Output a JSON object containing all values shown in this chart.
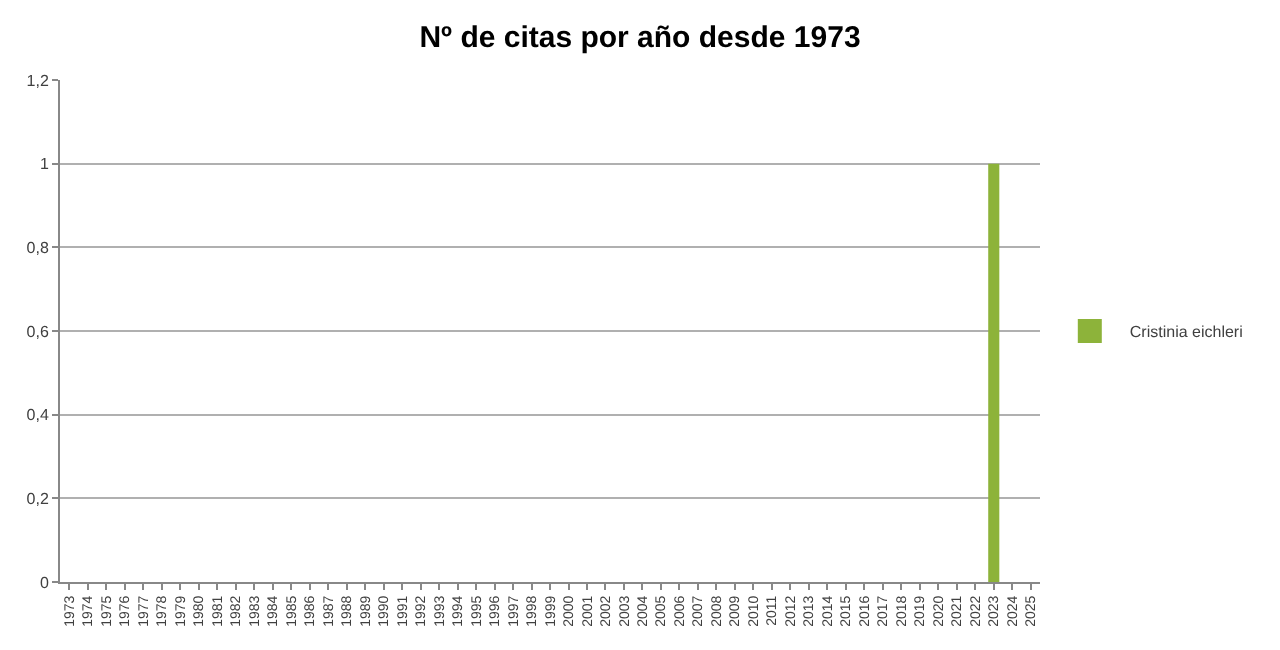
{
  "chart_data": {
    "type": "bar",
    "title": "Nº de citas por año desde 1973",
    "categories": [
      "1973",
      "1974",
      "1975",
      "1976",
      "1977",
      "1978",
      "1979",
      "1980",
      "1981",
      "1982",
      "1983",
      "1984",
      "1985",
      "1986",
      "1987",
      "1988",
      "1989",
      "1990",
      "1991",
      "1992",
      "1993",
      "1994",
      "1995",
      "1996",
      "1997",
      "1998",
      "1999",
      "2000",
      "2001",
      "2002",
      "2003",
      "2004",
      "2005",
      "2006",
      "2007",
      "2008",
      "2009",
      "2010",
      "2011",
      "2012",
      "2013",
      "2014",
      "2015",
      "2016",
      "2017",
      "2018",
      "2019",
      "2020",
      "2021",
      "2022",
      "2023",
      "2024",
      "2025"
    ],
    "series": [
      {
        "name": "Cristinia eichleri",
        "color": "#8db33a",
        "values": [
          0,
          0,
          0,
          0,
          0,
          0,
          0,
          0,
          0,
          0,
          0,
          0,
          0,
          0,
          0,
          0,
          0,
          0,
          0,
          0,
          0,
          0,
          0,
          0,
          0,
          0,
          0,
          0,
          0,
          0,
          0,
          0,
          0,
          0,
          0,
          0,
          0,
          0,
          0,
          0,
          0,
          0,
          0,
          0,
          0,
          0,
          0,
          0,
          0,
          0,
          1,
          0,
          0
        ]
      }
    ],
    "ylim": [
      0,
      1.2
    ],
    "yticks": [
      0,
      {
        "value": 0.2,
        "label": "0,2"
      },
      {
        "value": 0.4,
        "label": "0,4"
      },
      {
        "value": 0.6,
        "label": "0,6"
      },
      {
        "value": 0.8,
        "label": "0,8"
      },
      1,
      {
        "value": 1.2,
        "label": "1,2"
      }
    ],
    "grid": "y",
    "legend": "right"
  }
}
